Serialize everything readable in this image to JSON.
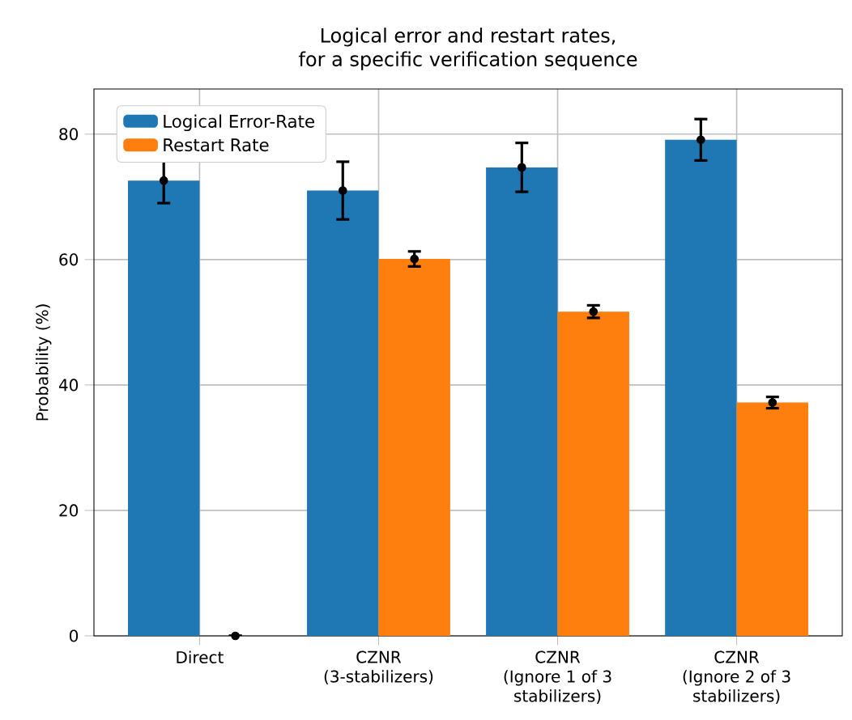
{
  "chart_data": {
    "type": "bar",
    "title": "Logical error and restart rates,\nfor a specific verification sequence",
    "ylabel": "Probability (%)",
    "categories": [
      "Direct",
      "CZNR\n(3-stabilizers)",
      "CZNR\n(Ignore 1 of 3\nstabilizers)",
      "CZNR\n(Ignore 2 of 3\nstabilizers)"
    ],
    "series": [
      {
        "name": "Logical Error-Rate",
        "color": "#1f77b4",
        "values": [
          72.6,
          71.0,
          74.7,
          79.1
        ]
      },
      {
        "name": "Restart Rate",
        "color": "#ff7f0e",
        "values": [
          0,
          60.1,
          51.7,
          37.2
        ]
      },
      {
        "type": "scatter",
        "color": "#000000",
        "x": [
          "Direct",
          "CZNR\n(3-stabilizers)",
          "CZNR\n(Ignore 1 of 3\nstabilizers)",
          "CZNR\n(Ignore 2 of 3\nstabilizers)"
        ],
        "values": [
          72.6,
          71.0,
          74.7,
          79.1
        ],
        "errors": [
          3.6,
          4.6,
          3.9,
          3.3
        ]
      },
      {
        "type": "scatter",
        "color": "#000000",
        "x": [
          "Direct",
          "CZNR\n(3-stabilizers)",
          "CZNR\n(Ignore 1 of 3\nstabilizers)",
          "CZNR\n(Ignore 2 of 3\nstabilizers)"
        ],
        "values": [
          0,
          60.1,
          51.7,
          37.2
        ],
        "errors": [
          null,
          1.2,
          1.0,
          0.9
        ]
      }
    ],
    "ylim": [
      0,
      87.2
    ],
    "yticks": [
      0,
      20,
      40,
      60,
      80
    ],
    "grid": true,
    "legend": "top left"
  }
}
